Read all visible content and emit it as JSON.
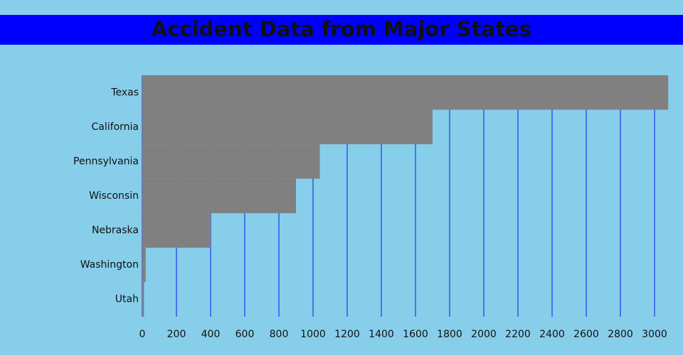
{
  "chart_data": {
    "type": "hbar",
    "title": "Accident Data from Major States",
    "categories": [
      "Texas",
      "California",
      "Pennsylvania",
      "Wisconsin",
      "Nebraska",
      "Washington",
      "Utah"
    ],
    "values": [
      3080,
      1700,
      1040,
      900,
      400,
      20,
      10
    ],
    "color": "#808080",
    "grid_color": "#3355ee",
    "xlim": [
      0,
      3100
    ],
    "xticks": [
      0,
      200,
      400,
      600,
      800,
      1000,
      1200,
      1400,
      1600,
      1800,
      2000,
      2200,
      2400,
      2600,
      2800,
      3000
    ],
    "grid": true
  }
}
